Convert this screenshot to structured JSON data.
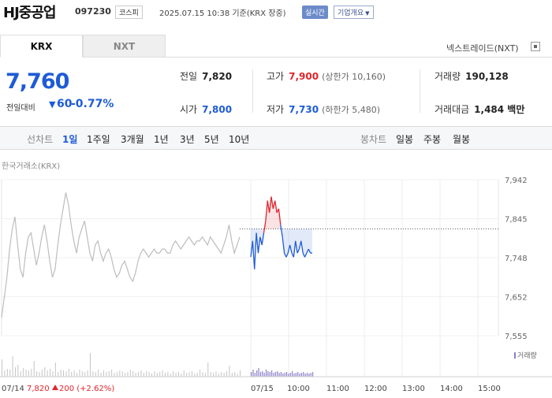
{
  "header": {
    "name": "HJ중공업",
    "code": "097230",
    "market": "코스피",
    "timestamp": "2025.07.15 10:38 기준(KRX 장중)",
    "realtime": "실시간",
    "company_info": "기업개요"
  },
  "tabs": [
    {
      "label": "KRX"
    },
    {
      "label": "NXT"
    }
  ],
  "nxt_toggle": "넥스트레이드(NXT)",
  "quote": {
    "price": "7,760",
    "change_label": "전일대비",
    "change": "60",
    "change_pct": "-0.77%"
  },
  "stats": {
    "prev": {
      "label": "전일",
      "value": "7,820"
    },
    "open": {
      "label": "시가",
      "value": "7,800"
    },
    "high": {
      "label": "고가",
      "value": "7,900",
      "sub": "(상한가 10,160)"
    },
    "low": {
      "label": "저가",
      "value": "7,730",
      "sub": "(하한가 5,480)"
    },
    "volume": {
      "label": "거래량",
      "value": "190,128"
    },
    "amount": {
      "label": "거래대금",
      "value": "1,484 백만"
    }
  },
  "periods": {
    "line_group": "선차트",
    "line_items": [
      "1일",
      "1주일",
      "3개월",
      "1년",
      "3년",
      "5년",
      "10년"
    ],
    "selected": "1일",
    "candle_group": "봉차트",
    "candle_items": [
      "일봉",
      "주봉",
      "월봉"
    ]
  },
  "chart_caption": "한국거래소(KRX)",
  "volume_legend": "거래량",
  "colors": {
    "up": "#e0252c",
    "down": "#1e5bd6",
    "prev_line": "#bdbdbd"
  },
  "chart_data": {
    "type": "line",
    "y_ticks": [
      "7,942",
      "7,845",
      "7,748",
      "7,652",
      "7,555"
    ],
    "x_ticks": [
      "07/14",
      "07/15",
      "10:00",
      "11:00",
      "12:00",
      "13:00",
      "14:00",
      "15:00"
    ],
    "ylim": [
      7555,
      7942
    ],
    "reference_price": 7820,
    "reference_footer": {
      "date": "07/14",
      "price": "7,820",
      "change": "200 (+2.62%)"
    },
    "prev_day": [
      7600,
      7650,
      7700,
      7770,
      7820,
      7850,
      7780,
      7720,
      7700,
      7760,
      7800,
      7810,
      7770,
      7730,
      7760,
      7800,
      7830,
      7790,
      7740,
      7700,
      7720,
      7780,
      7830,
      7870,
      7910,
      7880,
      7830,
      7790,
      7760,
      7800,
      7820,
      7840,
      7800,
      7760,
      7740,
      7780,
      7790,
      7760,
      7740,
      7760,
      7770,
      7750,
      7720,
      7700,
      7710,
      7730,
      7740,
      7720,
      7700,
      7690,
      7710,
      7740,
      7760,
      7770,
      7760,
      7750,
      7760,
      7770,
      7760,
      7760,
      7770,
      7770,
      7760,
      7760,
      7780,
      7790,
      7780,
      7770,
      7780,
      7790,
      7800,
      7790,
      7780,
      7790,
      7790,
      7800,
      7790,
      7780,
      7800,
      7790,
      7780,
      7770,
      7760,
      7780,
      7800,
      7830,
      7790,
      7760,
      7780,
      7800
    ],
    "today": [
      7750,
      7790,
      7720,
      7810,
      7760,
      7800,
      7780,
      7810,
      7840,
      7890,
      7860,
      7900,
      7870,
      7890,
      7860,
      7870,
      7830,
      7800,
      7760,
      7750,
      7760,
      7780,
      7760,
      7750,
      7790,
      7760,
      7770,
      7790,
      7760,
      7750,
      7760,
      7770,
      7760,
      7760
    ],
    "today_volume": [
      6,
      9,
      5,
      8,
      11,
      6,
      7,
      5,
      9,
      7,
      6,
      8,
      5,
      6,
      7,
      5,
      6,
      4,
      5,
      6,
      4,
      5,
      7,
      4,
      5,
      6,
      4,
      5,
      6,
      4,
      5,
      4,
      5,
      6
    ],
    "prev_volume": [
      22,
      8,
      10,
      9,
      26,
      12,
      15,
      7,
      11,
      9,
      8,
      10,
      20,
      7,
      6,
      9,
      12,
      8,
      10,
      7,
      18,
      6,
      9,
      8,
      7,
      10,
      6,
      8,
      5,
      9,
      7,
      6,
      8,
      30,
      7,
      6,
      9,
      5,
      8,
      6,
      7,
      9,
      5,
      6,
      8,
      7,
      5,
      6,
      9,
      7,
      5,
      6,
      8,
      5,
      7,
      6,
      4,
      7,
      5,
      6,
      8,
      5,
      6,
      4,
      7,
      5,
      6,
      4,
      8,
      5,
      6,
      7,
      4,
      5,
      9,
      6,
      5,
      18,
      6,
      5,
      7,
      4,
      6,
      5,
      7,
      14,
      5,
      6,
      4,
      8
    ]
  }
}
